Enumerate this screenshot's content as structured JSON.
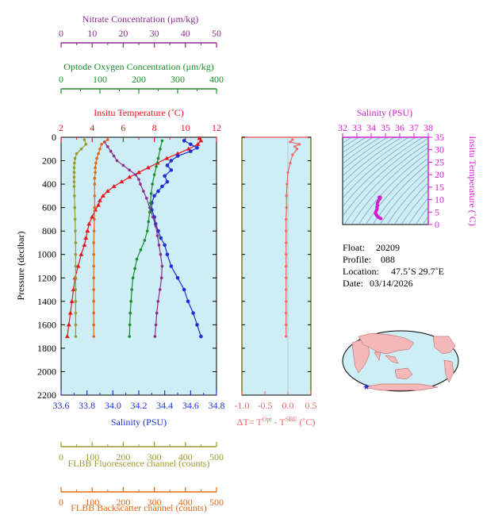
{
  "colors": {
    "nitrate": "#8e2c8e",
    "oxygen": "#1a8c2a",
    "temperature": "#e8141c",
    "salinity": "#1f2fd6",
    "fluorescence": "#9a9a2a",
    "backscatter": "#e06a1a",
    "delta_t": "#f06464",
    "ts_axis": "#d41ed4",
    "plot_bg": "#cdeef6",
    "contour": "#6a8aa0"
  },
  "info": {
    "float_label": "Float:",
    "float_value": "20209",
    "profile_label": "Profile:",
    "profile_value": "088",
    "location_label": "Location:",
    "location_value": "47.5˚S  29.7˚E",
    "date_label": "Date:",
    "date_value": "03/14/2026"
  },
  "chart_data": [
    {
      "type": "line",
      "panel": "profile",
      "ylabel": "Pressure (decibar)",
      "ylim": [
        2200,
        0
      ],
      "yticks": [
        "0",
        "200",
        "400",
        "600",
        "800",
        "1000",
        "1200",
        "1400",
        "1600",
        "1800",
        "2000",
        "2200"
      ],
      "axes": {
        "nitrate": {
          "title": "Nitrate Concentration (μm/kg)",
          "ticks": [
            "0",
            "10",
            "20",
            "30",
            "40",
            "50"
          ],
          "xlim": [
            0,
            50
          ]
        },
        "oxygen": {
          "title": "Optode Oxygen Concentration (μm/kg)",
          "ticks": [
            "0",
            "100",
            "200",
            "300",
            "400"
          ],
          "xlim": [
            0,
            400
          ]
        },
        "temperature": {
          "title": "Insitu Temperature (˚C)",
          "ticks": [
            "2",
            "4",
            "6",
            "8",
            "10",
            "12"
          ],
          "xlim": [
            2,
            12
          ]
        },
        "salinity": {
          "title": "Salinity (PSU)",
          "ticks": [
            "33.6",
            "33.8",
            "34.0",
            "34.2",
            "34.4",
            "34.6",
            "34.8"
          ],
          "xlim": [
            33.6,
            34.8
          ]
        },
        "fluorescence": {
          "title": "FLBB Fluorescence channel (counts)",
          "ticks": [
            "0",
            "100",
            "200",
            "300",
            "400",
            "500"
          ],
          "xlim": [
            0,
            500
          ]
        },
        "backscatter": {
          "title": "FLBB Backscatter channel (counts)",
          "ticks": [
            "0",
            "100",
            "200",
            "300",
            "400",
            "500"
          ],
          "xlim": [
            0,
            500
          ]
        }
      },
      "series": [
        {
          "key": "temperature",
          "points": [
            [
              10.9,
              10
            ],
            [
              11.0,
              30
            ],
            [
              10.8,
              60
            ],
            [
              10.2,
              100
            ],
            [
              9.5,
              140
            ],
            [
              8.8,
              180
            ],
            [
              8.2,
              220
            ],
            [
              7.6,
              260
            ],
            [
              7.0,
              300
            ],
            [
              6.4,
              340
            ],
            [
              5.9,
              380
            ],
            [
              5.4,
              420
            ],
            [
              5.0,
              460
            ],
            [
              4.7,
              500
            ],
            [
              4.5,
              540
            ],
            [
              4.4,
              580
            ],
            [
              4.2,
              620
            ],
            [
              4.0,
              680
            ],
            [
              3.8,
              740
            ],
            [
              3.7,
              800
            ],
            [
              3.6,
              860
            ],
            [
              3.5,
              920
            ],
            [
              3.3,
              1000
            ],
            [
              3.1,
              1100
            ],
            [
              2.9,
              1200
            ],
            [
              2.8,
              1300
            ],
            [
              2.7,
              1400
            ],
            [
              2.6,
              1500
            ],
            [
              2.5,
              1600
            ],
            [
              2.4,
              1700
            ]
          ]
        },
        {
          "key": "salinity",
          "points": [
            [
              34.55,
              30
            ],
            [
              34.6,
              60
            ],
            [
              34.65,
              90
            ],
            [
              34.6,
              120
            ],
            [
              34.5,
              160
            ],
            [
              34.45,
              200
            ],
            [
              34.42,
              240
            ],
            [
              34.45,
              280
            ],
            [
              34.4,
              330
            ],
            [
              34.42,
              380
            ],
            [
              34.38,
              420
            ],
            [
              34.35,
              460
            ],
            [
              34.32,
              500
            ],
            [
              34.3,
              560
            ],
            [
              34.3,
              620
            ],
            [
              34.32,
              680
            ],
            [
              34.33,
              740
            ],
            [
              34.35,
              800
            ],
            [
              34.37,
              860
            ],
            [
              34.4,
              920
            ],
            [
              34.42,
              1000
            ],
            [
              34.45,
              1100
            ],
            [
              34.5,
              1200
            ],
            [
              34.55,
              1300
            ],
            [
              34.58,
              1400
            ],
            [
              34.62,
              1500
            ],
            [
              34.65,
              1600
            ],
            [
              34.68,
              1700
            ]
          ]
        },
        {
          "key": "nitrate",
          "points": [
            [
              14,
              40
            ],
            [
              15,
              80
            ],
            [
              16,
              120
            ],
            [
              17,
              160
            ],
            [
              18,
              200
            ],
            [
              20,
              240
            ],
            [
              22,
              280
            ],
            [
              24,
              320
            ],
            [
              25,
              360
            ],
            [
              25.5,
              400
            ],
            [
              26.5,
              460
            ],
            [
              27.5,
              520
            ],
            [
              28.5,
              600
            ],
            [
              29.5,
              680
            ],
            [
              30.5,
              760
            ],
            [
              31,
              840
            ],
            [
              31.5,
              920
            ],
            [
              32,
              1000
            ],
            [
              32.5,
              1100
            ],
            [
              32.3,
              1200
            ],
            [
              31.8,
              1300
            ],
            [
              31.2,
              1400
            ],
            [
              30.8,
              1500
            ],
            [
              30.5,
              1600
            ],
            [
              30.2,
              1700
            ]
          ]
        },
        {
          "key": "oxygen",
          "points": [
            [
              260,
              30
            ],
            [
              255,
              100
            ],
            [
              250,
              180
            ],
            [
              245,
              250
            ],
            [
              240,
              320
            ],
            [
              235,
              400
            ],
            [
              232,
              480
            ],
            [
              230,
              560
            ],
            [
              228,
              640
            ],
            [
              225,
              720
            ],
            [
              222,
              800
            ],
            [
              215,
              880
            ],
            [
              205,
              960
            ],
            [
              195,
              1040
            ],
            [
              190,
              1120
            ],
            [
              185,
              1200
            ],
            [
              182,
              1300
            ],
            [
              180,
              1400
            ],
            [
              178,
              1500
            ],
            [
              177,
              1600
            ],
            [
              176,
              1700
            ]
          ]
        },
        {
          "key": "fluorescence",
          "points": [
            [
              75,
              20
            ],
            [
              80,
              60
            ],
            [
              65,
              100
            ],
            [
              50,
              140
            ],
            [
              45,
              180
            ],
            [
              43,
              220
            ],
            [
              42,
              260
            ],
            [
              42,
              300
            ],
            [
              42,
              340
            ],
            [
              42,
              380
            ],
            [
              42,
              420
            ],
            [
              43,
              500
            ],
            [
              44,
              600
            ],
            [
              45,
              700
            ],
            [
              46,
              800
            ],
            [
              47,
              900
            ],
            [
              47,
              1000
            ],
            [
              47,
              1100
            ],
            [
              47,
              1200
            ],
            [
              47,
              1300
            ],
            [
              47,
              1400
            ],
            [
              47,
              1500
            ],
            [
              47,
              1600
            ],
            [
              47,
              1700
            ]
          ]
        },
        {
          "key": "backscatter",
          "points": [
            [
              150,
              20
            ],
            [
              130,
              60
            ],
            [
              125,
              100
            ],
            [
              120,
              140
            ],
            [
              115,
              180
            ],
            [
              112,
              220
            ],
            [
              110,
              260
            ],
            [
              110,
              300
            ],
            [
              108,
              350
            ],
            [
              108,
              400
            ],
            [
              108,
              500
            ],
            [
              108,
              600
            ],
            [
              107,
              700
            ],
            [
              106,
              800
            ],
            [
              105,
              900
            ],
            [
              105,
              1000
            ],
            [
              105,
              1100
            ],
            [
              105,
              1200
            ],
            [
              105,
              1300
            ],
            [
              105,
              1400
            ],
            [
              105,
              1500
            ],
            [
              105,
              1600
            ],
            [
              105,
              1700
            ]
          ]
        }
      ]
    },
    {
      "type": "line",
      "panel": "delta_t",
      "xlabel": "ΔT= T",
      "xlabel_sup1": "Opt",
      "xlabel_mid": " - T",
      "xlabel_sup2": "SBE",
      "xlabel_end": " (˚C)",
      "xlim": [
        -1.0,
        0.5
      ],
      "xticks": [
        "-1.0",
        "-0.5",
        "0.0",
        "0.5"
      ],
      "ylim": [
        2200,
        0
      ],
      "points": [
        [
          0.1,
          20
        ],
        [
          0.05,
          40
        ],
        [
          0.25,
          60
        ],
        [
          0.15,
          80
        ],
        [
          0.2,
          100
        ],
        [
          0.1,
          150
        ],
        [
          0.05,
          220
        ],
        [
          0.0,
          300
        ],
        [
          -0.02,
          400
        ],
        [
          -0.03,
          500
        ],
        [
          -0.03,
          600
        ],
        [
          -0.04,
          700
        ],
        [
          -0.04,
          800
        ],
        [
          -0.04,
          900
        ],
        [
          -0.04,
          1000
        ],
        [
          -0.04,
          1100
        ],
        [
          -0.04,
          1200
        ],
        [
          -0.04,
          1300
        ],
        [
          -0.04,
          1400
        ],
        [
          -0.04,
          1500
        ],
        [
          -0.04,
          1600
        ],
        [
          -0.04,
          1700
        ]
      ]
    },
    {
      "type": "scatter",
      "panel": "ts_diagram",
      "xlabel": "Salinity (PSU)",
      "ylabel": "Insitu Temperature (˚C)",
      "xlim": [
        32,
        38
      ],
      "ylim": [
        0,
        35
      ],
      "xticks": [
        "32",
        "33",
        "34",
        "35",
        "36",
        "37",
        "38"
      ],
      "yticks": [
        "0",
        "5",
        "10",
        "15",
        "20",
        "25",
        "30",
        "35"
      ],
      "points": [
        [
          34.68,
          2.4
        ],
        [
          34.62,
          2.6
        ],
        [
          34.55,
          2.8
        ],
        [
          34.5,
          3.0
        ],
        [
          34.45,
          3.2
        ],
        [
          34.42,
          3.4
        ],
        [
          34.4,
          3.6
        ],
        [
          34.37,
          3.8
        ],
        [
          34.35,
          4.0
        ],
        [
          34.32,
          4.3
        ],
        [
          34.3,
          4.6
        ],
        [
          34.32,
          5.0
        ],
        [
          34.35,
          5.4
        ],
        [
          34.38,
          5.9
        ],
        [
          34.42,
          6.4
        ],
        [
          34.4,
          7.0
        ],
        [
          34.45,
          7.6
        ],
        [
          34.42,
          8.2
        ],
        [
          34.45,
          8.8
        ],
        [
          34.5,
          9.5
        ],
        [
          34.6,
          10.2
        ],
        [
          34.65,
          10.8
        ],
        [
          34.6,
          11.0
        ],
        [
          34.55,
          10.9
        ]
      ]
    },
    {
      "type": "map",
      "panel": "location_map",
      "marker": {
        "lon": 29.7,
        "lat": -47.5
      }
    }
  ]
}
